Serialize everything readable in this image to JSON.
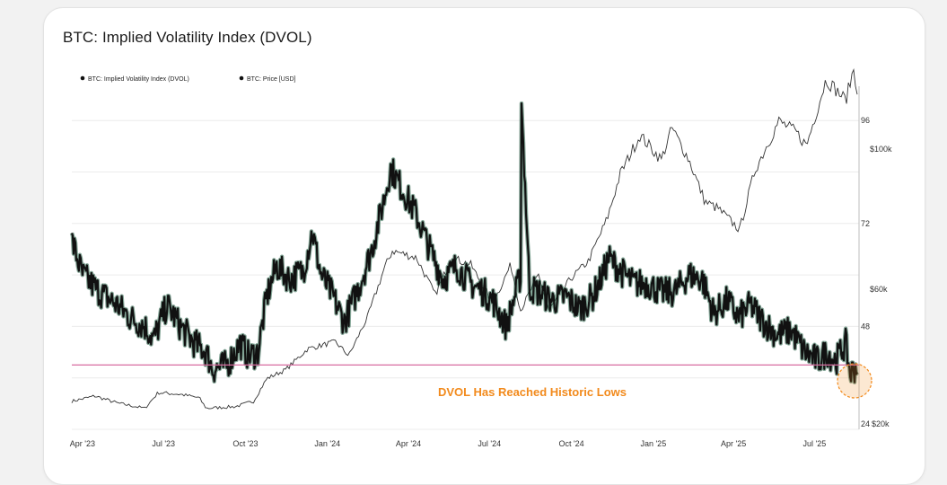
{
  "title": "BTC: Implied Volatility Index (DVOL)",
  "colors": {
    "dvol": "#111111",
    "dvol_fill": "#1f5c42",
    "price": "#333333",
    "low_line": "#d86ca0",
    "annotation": "#f28a1c",
    "grid": "#ececec"
  },
  "chart_data": {
    "type": "line",
    "title": "BTC: Implied Volatility Index (DVOL)",
    "legend": {
      "position": "top-left",
      "entries": [
        "BTC: Implied Volatility Index (DVOL)",
        "BTC: Price [USD]"
      ]
    },
    "x_tick_labels": [
      "Apr '23",
      "Jul '23",
      "Oct '23",
      "Jan '24",
      "Apr '24",
      "Jul '24",
      "Oct '24",
      "Jan '25",
      "Apr '25",
      "Jul '25"
    ],
    "y_left_labels": [
      "96",
      "72",
      "48",
      "24"
    ],
    "y_right_labels": [
      "$100k",
      "$60k",
      "$20k"
    ],
    "ylim_dvol": [
      24,
      104
    ],
    "ylim_price_usd": [
      20000,
      118000
    ],
    "grid": true,
    "annotation": "DVOL Has Reached Historic Lows",
    "historic_low_level": 39,
    "series": [
      {
        "name": "BTC: Implied Volatility Index (DVOL)",
        "x": [
          "2023-03-20",
          "2023-04-01",
          "2023-04-20",
          "2023-05-10",
          "2023-05-25",
          "2023-06-10",
          "2023-06-20",
          "2023-07-05",
          "2023-07-20",
          "2023-08-05",
          "2023-08-18",
          "2023-08-25",
          "2023-09-10",
          "2023-09-25",
          "2023-10-05",
          "2023-10-15",
          "2023-10-25",
          "2023-11-05",
          "2023-11-20",
          "2023-12-05",
          "2023-12-15",
          "2023-12-25",
          "2024-01-05",
          "2024-01-20",
          "2024-02-05",
          "2024-02-20",
          "2024-03-05",
          "2024-03-12",
          "2024-03-25",
          "2024-04-10",
          "2024-04-25",
          "2024-05-10",
          "2024-05-25",
          "2024-06-10",
          "2024-06-25",
          "2024-07-05",
          "2024-07-20",
          "2024-08-05",
          "2024-08-06",
          "2024-08-15",
          "2024-08-25",
          "2024-09-10",
          "2024-09-25",
          "2024-10-10",
          "2024-10-25",
          "2024-11-05",
          "2024-11-12",
          "2024-11-25",
          "2024-12-10",
          "2024-12-25",
          "2025-01-10",
          "2025-01-25",
          "2025-02-10",
          "2025-02-25",
          "2025-03-10",
          "2025-03-25",
          "2025-04-07",
          "2025-04-20",
          "2025-05-05",
          "2025-05-20",
          "2025-06-05",
          "2025-06-20",
          "2025-07-05",
          "2025-07-15",
          "2025-07-25",
          "2025-08-05",
          "2025-08-10",
          "2025-08-18"
        ],
        "values": [
          68,
          60,
          56,
          53,
          50,
          48,
          45,
          53,
          48,
          44,
          42,
          38,
          39,
          44,
          41,
          42,
          55,
          62,
          59,
          61,
          70,
          60,
          56,
          49,
          57,
          66,
          78,
          85,
          80,
          74,
          66,
          59,
          62,
          58,
          56,
          54,
          48,
          60,
          100,
          57,
          56,
          54,
          55,
          52,
          55,
          60,
          64,
          61,
          58,
          58,
          56,
          56,
          60,
          59,
          51,
          54,
          50,
          53,
          49,
          46,
          47,
          42,
          40,
          42,
          40,
          44,
          37,
          39
        ]
      },
      {
        "name": "BTC: Price [USD]",
        "x": [
          "2023-03-20",
          "2023-04-15",
          "2023-05-10",
          "2023-06-10",
          "2023-06-25",
          "2023-07-20",
          "2023-08-10",
          "2023-08-18",
          "2023-09-20",
          "2023-10-10",
          "2023-10-25",
          "2023-11-15",
          "2023-12-10",
          "2024-01-10",
          "2024-01-25",
          "2024-02-15",
          "2024-03-05",
          "2024-03-14",
          "2024-04-10",
          "2024-05-01",
          "2024-05-20",
          "2024-06-10",
          "2024-07-05",
          "2024-07-25",
          "2024-08-05",
          "2024-08-25",
          "2024-09-06",
          "2024-09-30",
          "2024-10-20",
          "2024-11-10",
          "2024-11-25",
          "2024-12-17",
          "2025-01-10",
          "2025-01-22",
          "2025-02-10",
          "2025-02-28",
          "2025-03-15",
          "2025-04-08",
          "2025-04-25",
          "2025-05-22",
          "2025-06-10",
          "2025-06-22",
          "2025-07-14",
          "2025-08-05",
          "2025-08-14",
          "2025-08-18"
        ],
        "values": [
          28000,
          29500,
          27500,
          26000,
          30500,
          30000,
          29000,
          26000,
          26500,
          28000,
          34500,
          37000,
          43000,
          45000,
          41000,
          52000,
          66000,
          71000,
          69000,
          58500,
          69000,
          67000,
          56000,
          67000,
          54000,
          64000,
          54000,
          63000,
          68000,
          80000,
          93000,
          104000,
          97000,
          106000,
          97000,
          85000,
          83000,
          77000,
          94000,
          108000,
          105000,
          101000,
          120000,
          114000,
          123000,
          117000
        ]
      }
    ]
  }
}
